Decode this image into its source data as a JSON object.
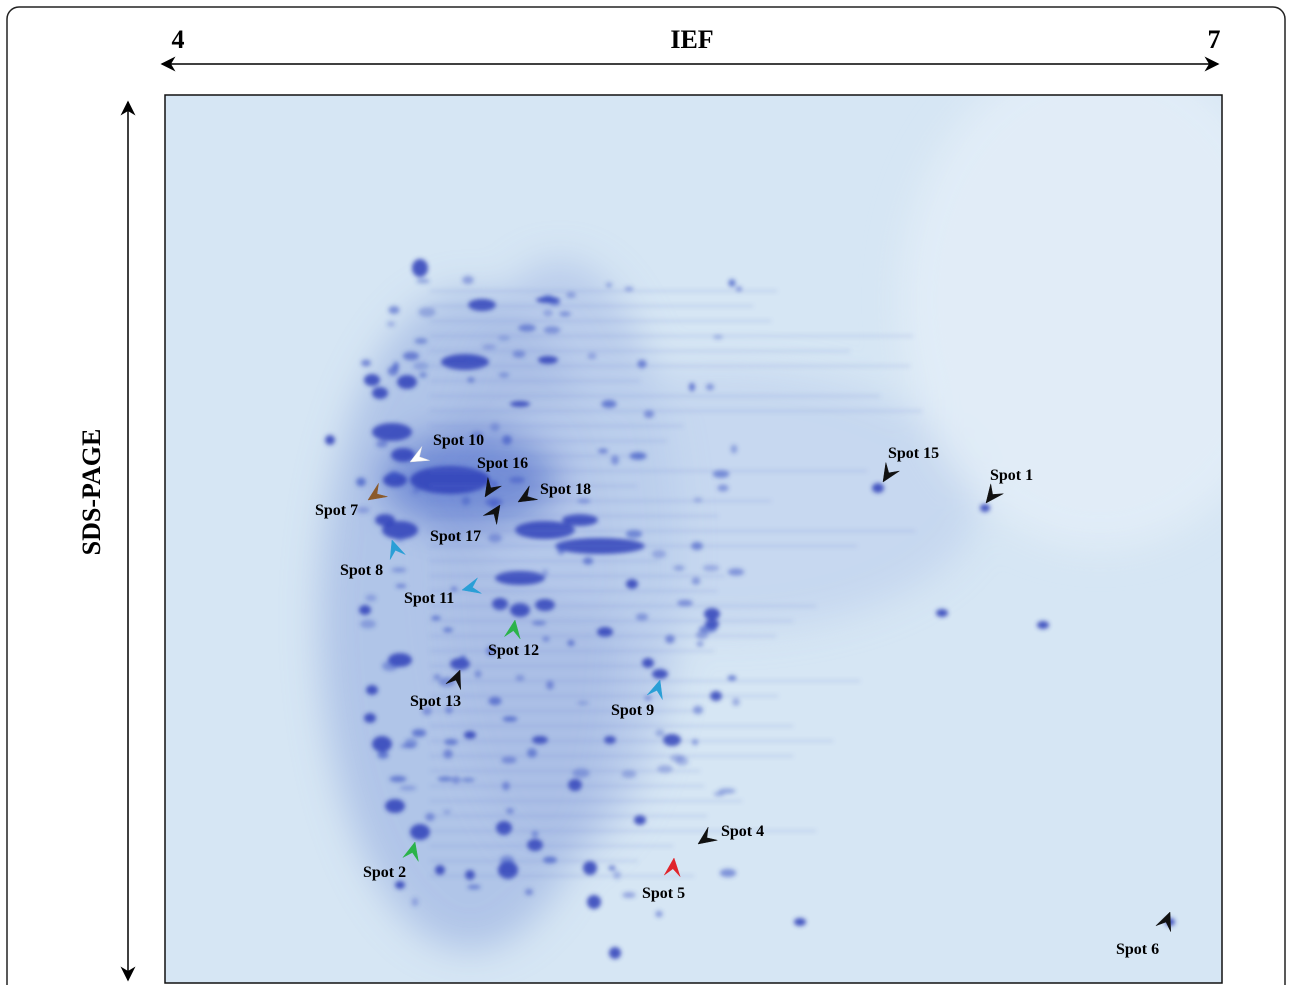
{
  "axes": {
    "ief_start": "4",
    "ief_title": "IEF",
    "ief_end": "7",
    "sds_title": "SDS-PAGE"
  },
  "spots": [
    {
      "label": "Spot 10"
    },
    {
      "label": "Spot 16"
    },
    {
      "label": "Spot 18"
    },
    {
      "label": "Spot 7"
    },
    {
      "label": "Spot 17"
    },
    {
      "label": "Spot 8"
    },
    {
      "label": "Spot 11"
    },
    {
      "label": "Spot 12"
    },
    {
      "label": "Spot 13"
    },
    {
      "label": "Spot 9"
    },
    {
      "label": "Spot 15"
    },
    {
      "label": "Spot 1"
    },
    {
      "label": "Spot 4"
    },
    {
      "label": "Spot 2"
    },
    {
      "label": "Spot 5"
    },
    {
      "label": "Spot 6"
    }
  ]
}
